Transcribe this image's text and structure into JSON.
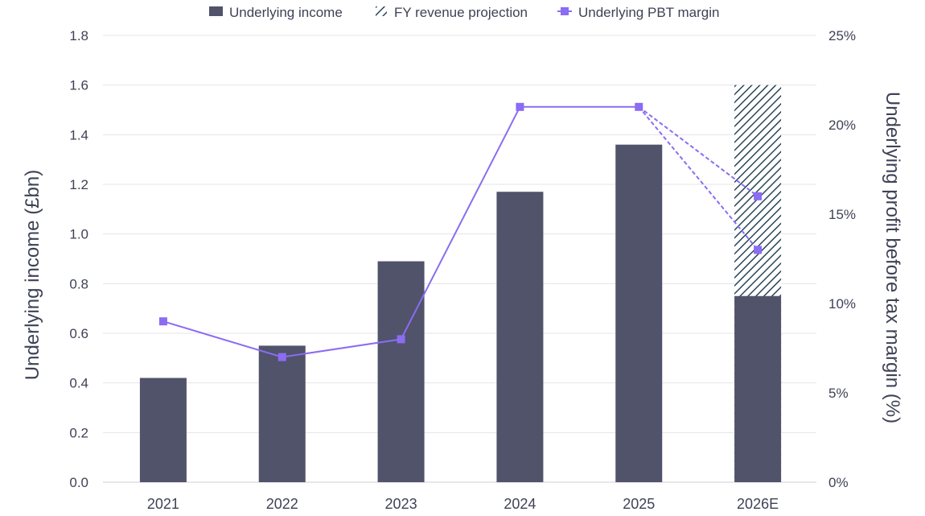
{
  "chart_data": {
    "type": "bar",
    "categories": [
      "2021",
      "2022",
      "2023",
      "2024",
      "2025",
      "2026E"
    ],
    "series": [
      {
        "name": "Underlying income",
        "type": "bar",
        "axis": "left",
        "values": [
          0.42,
          0.55,
          0.89,
          1.17,
          1.36,
          0.75
        ],
        "color": "#50536a"
      },
      {
        "name": "FY revenue projection",
        "type": "bar-hatched",
        "axis": "left",
        "values": [
          null,
          null,
          null,
          null,
          null,
          1.6
        ],
        "color": "#2b4657"
      },
      {
        "name": "Underlying PBT margin",
        "type": "line",
        "axis": "right",
        "values": [
          9,
          7,
          8,
          21,
          21,
          null
        ],
        "projections": [
          16,
          13
        ],
        "color": "#8b6cf2"
      }
    ],
    "ylabel": "Underlying income (£bn)",
    "y2label": "Underlying profit before tax margin (%)",
    "ylim": [
      0,
      1.8
    ],
    "yticks": [
      "0.0",
      "0.2",
      "0.4",
      "0.6",
      "0.8",
      "1.0",
      "1.2",
      "1.4",
      "1.6",
      "1.8"
    ],
    "y2lim": [
      0,
      25
    ],
    "y2ticks": [
      "0%",
      "5%",
      "10%",
      "15%",
      "20%",
      "25%"
    ],
    "grid": true,
    "legend_position": "top-center"
  }
}
